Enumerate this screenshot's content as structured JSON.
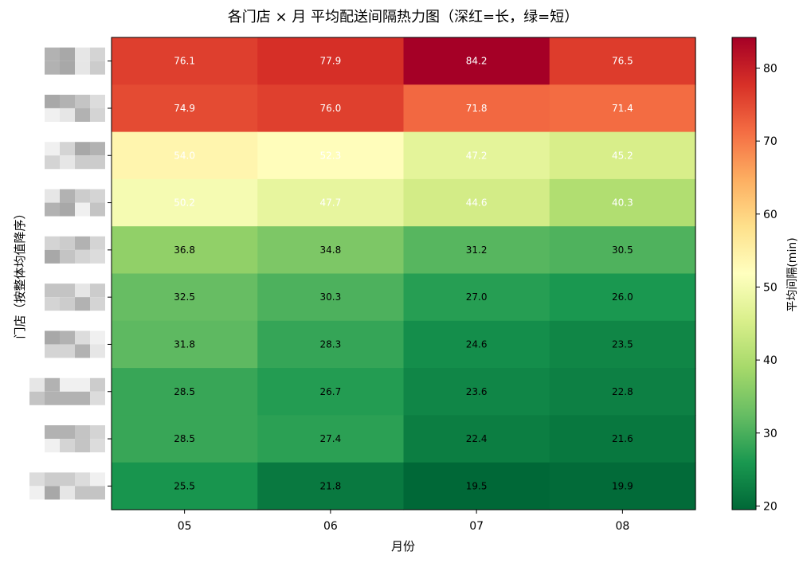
{
  "chart_data": {
    "type": "heatmap",
    "title": "各门店 × 月 平均配送间隔热力图（深红=长，绿=短）",
    "xlabel": "月份",
    "ylabel": "门店（按整体均值降序）",
    "colorbar_label": "平均间隔(min)",
    "x_categories": [
      "05",
      "06",
      "07",
      "08"
    ],
    "y_categories_redacted": true,
    "colormap": "RdYlGn_r",
    "vmin": 19.5,
    "vmax": 84.2,
    "colorbar_ticks": [
      20,
      30,
      40,
      50,
      60,
      70,
      80
    ],
    "values": [
      [
        76.1,
        77.9,
        84.2,
        76.5
      ],
      [
        74.9,
        76.0,
        71.8,
        71.4
      ],
      [
        54.0,
        52.3,
        47.2,
        45.2
      ],
      [
        50.2,
        47.7,
        44.6,
        40.3
      ],
      [
        36.8,
        34.8,
        31.2,
        30.5
      ],
      [
        32.5,
        30.3,
        27.0,
        26.0
      ],
      [
        31.8,
        28.3,
        24.6,
        23.5
      ],
      [
        28.5,
        26.7,
        23.6,
        22.8
      ],
      [
        28.5,
        27.4,
        22.4,
        21.6
      ],
      [
        25.5,
        21.8,
        19.5,
        19.9
      ]
    ],
    "grid": false
  }
}
